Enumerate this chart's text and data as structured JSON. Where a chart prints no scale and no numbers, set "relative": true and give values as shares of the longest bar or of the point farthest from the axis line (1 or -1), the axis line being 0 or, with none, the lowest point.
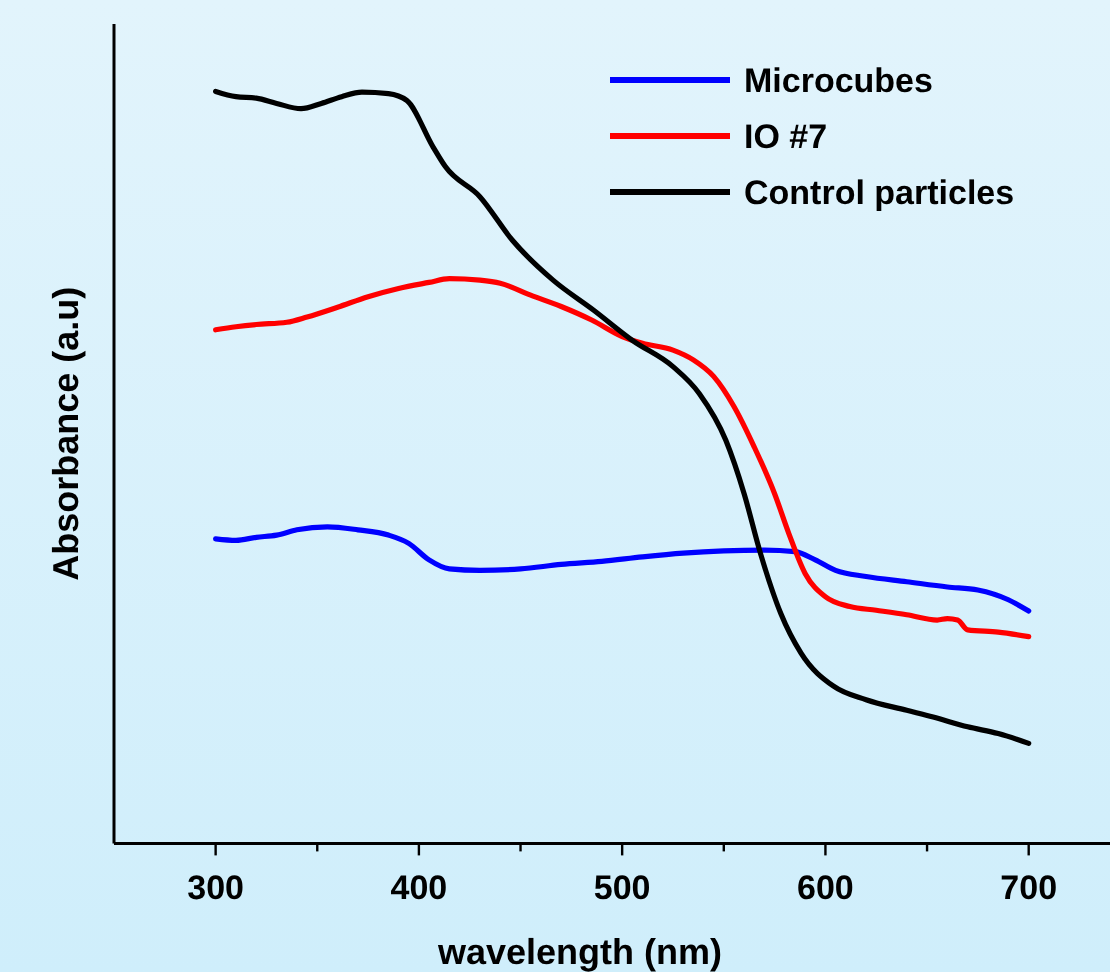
{
  "chart_data": {
    "type": "line",
    "relative": true,
    "xlabel": "wavelength (nm)",
    "ylabel": "Absorbance (a.u)",
    "xlim": [
      250,
      740
    ],
    "xticks": [
      300,
      {
        "value": 350,
        "label": null
      },
      400,
      {
        "value": 450,
        "label": null
      },
      500,
      {
        "value": 550,
        "label": null
      },
      600,
      {
        "value": 650,
        "label": null
      },
      700
    ],
    "legend": "top right",
    "grid": false,
    "line_style": "solid",
    "marker": "none",
    "series": [
      {
        "name": "Microcubes",
        "color": "#0000ff",
        "x": [
          300,
          310,
          320,
          330,
          340,
          355,
          370,
          385,
          395,
          405,
          415,
          430,
          450,
          470,
          490,
          510,
          530,
          550,
          570,
          585,
          595,
          605,
          620,
          640,
          660,
          675,
          690,
          700
        ],
        "values": [
          0.405,
          0.403,
          0.407,
          0.41,
          0.417,
          0.421,
          0.417,
          0.41,
          0.399,
          0.377,
          0.365,
          0.363,
          0.365,
          0.371,
          0.375,
          0.381,
          0.386,
          0.389,
          0.39,
          0.388,
          0.377,
          0.363,
          0.355,
          0.348,
          0.341,
          0.337,
          0.324,
          0.309
        ]
      },
      {
        "name": "IO #7",
        "color": "#ff0000",
        "x": [
          300,
          310,
          320,
          335,
          345,
          360,
          375,
          390,
          405,
          415,
          430,
          440,
          455,
          470,
          485,
          500,
          510,
          525,
          535,
          545,
          555,
          565,
          575,
          582,
          590,
          600,
          612,
          625,
          640,
          655,
          660,
          665,
          670,
          685,
          700
        ],
        "values": [
          0.683,
          0.687,
          0.69,
          0.693,
          0.7,
          0.713,
          0.727,
          0.738,
          0.746,
          0.751,
          0.749,
          0.745,
          0.729,
          0.714,
          0.696,
          0.674,
          0.665,
          0.656,
          0.643,
          0.621,
          0.581,
          0.527,
          0.465,
          0.412,
          0.359,
          0.328,
          0.315,
          0.31,
          0.304,
          0.297,
          0.299,
          0.297,
          0.284,
          0.281,
          0.275
        ]
      },
      {
        "name": "Control particles",
        "color": "#000000",
        "x": [
          300,
          310,
          320,
          330,
          342,
          352,
          362,
          372,
          385,
          394,
          407,
          413,
          430,
          446,
          466,
          486,
          505,
          525,
          538,
          551,
          560,
          568,
          578,
          588,
          604,
          620,
          640,
          653,
          670,
          685,
          700
        ],
        "values": [
          1.0,
          0.993,
          0.991,
          0.984,
          0.977,
          0.984,
          0.993,
          0.999,
          0.997,
          0.988,
          0.926,
          0.9,
          0.86,
          0.802,
          0.749,
          0.709,
          0.669,
          0.634,
          0.598,
          0.536,
          0.465,
          0.386,
          0.306,
          0.253,
          0.209,
          0.191,
          0.177,
          0.168,
          0.155,
          0.146,
          0.133
        ]
      }
    ]
  }
}
